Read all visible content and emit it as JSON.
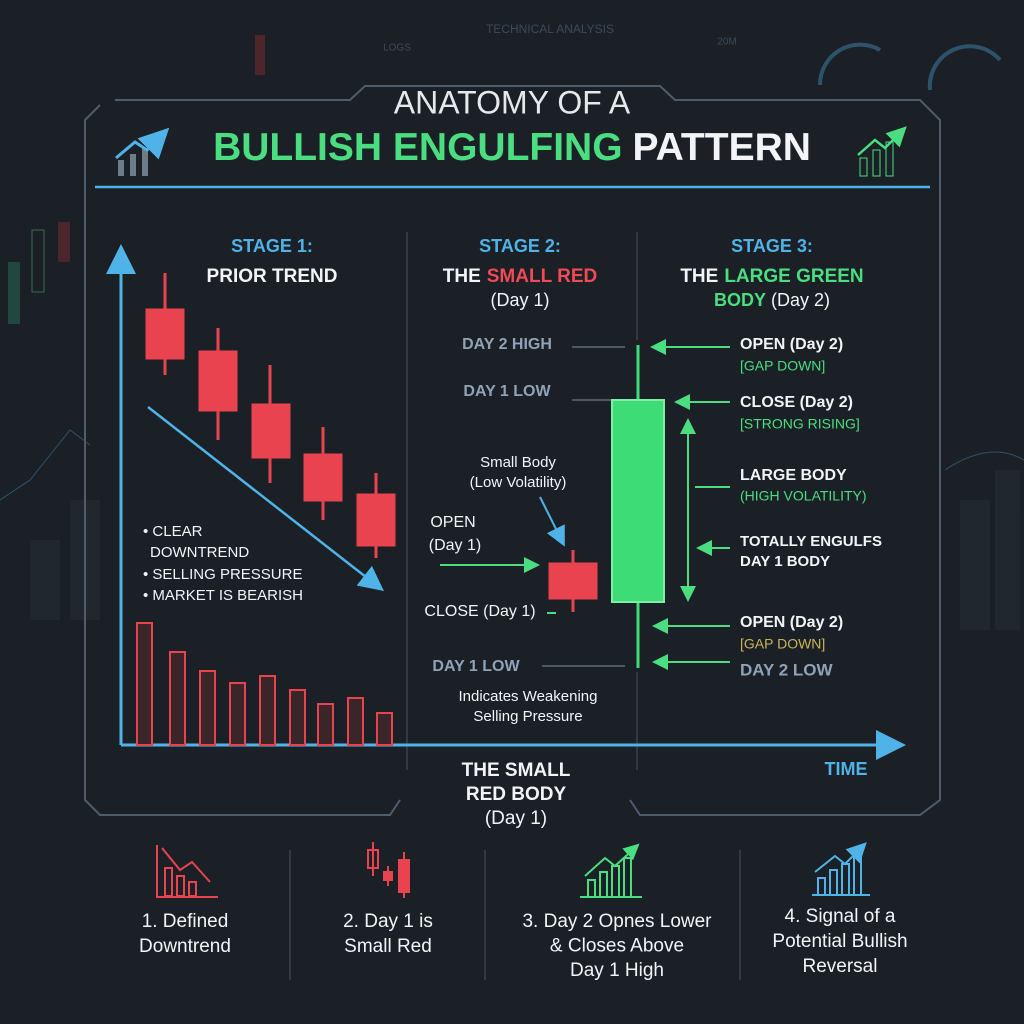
{
  "background_labels": [
    "TECHNICAL ANALYSIS",
    "LOGS",
    "20M"
  ],
  "header": {
    "line1": "ANATOMY OF A",
    "highlight": "BULLISH ENGULFING",
    "rest": "PATTERN"
  },
  "stage1": {
    "heading": "STAGE 1:",
    "title": "PRIOR TREND",
    "bullets": [
      "• CLEAR",
      "DOWNTREND",
      "• SELLING PRESSURE",
      "• MARKET IS BEARISH"
    ]
  },
  "stage2": {
    "heading": "STAGE 2:",
    "title_pre": "THE",
    "title_highlight": "SMALL RED",
    "subtitle": "(Day 1)",
    "day2_high": "DAY 2 HIGH",
    "day1_low_top": "DAY 1 LOW",
    "small_body": [
      "Small Body",
      "(Low Volatility)"
    ],
    "open": [
      "OPEN",
      "(Day 1)"
    ],
    "close": "CLOSE (Day 1)",
    "day1_low_bottom": "DAY 1 LOW",
    "note": [
      "Indicates Weakening",
      "Selling Pressure"
    ]
  },
  "stage3": {
    "heading": "STAGE 3:",
    "title_pre": "THE",
    "title_highlight": "LARGE GREEN",
    "title_highlight2": "BODY",
    "subtitle": "(Day 2)",
    "open_top": [
      "OPEN (Day 2)",
      "[GAP DOWN]"
    ],
    "close": [
      "CLOSE (Day 2)",
      "[STRONG RISING]"
    ],
    "large_body": [
      "LARGE BODY",
      "(HIGH VOLATILITY)"
    ],
    "engulfs": [
      "TOTALLY ENGULFS",
      "DAY 1 BODY"
    ],
    "open_bottom": [
      "OPEN (Day 2)",
      "[GAP DOWN]"
    ],
    "day2_low": "DAY 2 LOW"
  },
  "axis": {
    "x_label": "TIME",
    "bottom_label": [
      "THE SMALL",
      "RED BODY",
      "(Day 1)"
    ]
  },
  "steps": [
    [
      "1. Defined",
      "Downtrend"
    ],
    [
      "2. Day 1 is",
      "Small Red"
    ],
    [
      "3. Day 2 Opnes Lower",
      "& Closes Above",
      "Day 1 High"
    ],
    [
      "4. Signal of a",
      "Potential Bullish",
      "Reversal"
    ]
  ]
}
